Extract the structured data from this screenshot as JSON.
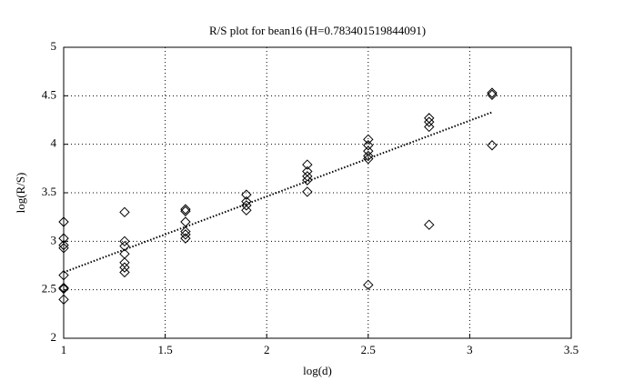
{
  "chart_data": {
    "type": "scatter",
    "title": "R/S plot for bean16 (H=0.783401519844091)",
    "x_label": "log(d)",
    "y_label": "log(R/S)",
    "xlim": [
      1,
      3.5
    ],
    "xticks": [
      1,
      1.5,
      2,
      2.5,
      3,
      3.5
    ],
    "ylim": [
      2,
      5
    ],
    "yticks": [
      2,
      2.5,
      3,
      3.5,
      4,
      4.5,
      5
    ],
    "grid": true,
    "series": [
      {
        "type": "scatter",
        "marker": "diamond",
        "color": "#000000",
        "x": [
          1,
          1,
          1,
          1,
          1,
          1,
          1,
          1,
          1.3,
          1.3,
          1.3,
          1.3,
          1.3,
          1.3,
          1.3,
          1.6,
          1.6,
          1.6,
          1.6,
          1.6,
          1.6,
          1.9,
          1.9,
          1.9,
          1.9,
          2.2,
          2.2,
          2.2,
          2.2,
          2.2,
          2.5,
          2.5,
          2.5,
          2.5,
          2.5,
          2.5,
          2.8,
          2.8,
          2.8,
          2.8,
          3.11,
          3.11,
          3.11
        ],
        "values": [
          3.2,
          3.03,
          2.96,
          2.93,
          2.65,
          2.52,
          2.51,
          2.4,
          3.3,
          3.0,
          2.95,
          2.87,
          2.78,
          2.73,
          2.68,
          3.33,
          3.31,
          3.2,
          3.1,
          3.07,
          3.03,
          3.48,
          3.41,
          3.37,
          3.32,
          3.79,
          3.72,
          3.67,
          3.63,
          3.51,
          4.05,
          3.99,
          3.93,
          3.88,
          3.85,
          2.55,
          4.27,
          4.23,
          4.18,
          3.17,
          4.53,
          4.51,
          3.99
        ]
      },
      {
        "type": "line",
        "line_style": "dotted",
        "color": "#000000",
        "x": [
          1,
          3.11
        ],
        "values": [
          2.68,
          4.33
        ]
      }
    ]
  }
}
